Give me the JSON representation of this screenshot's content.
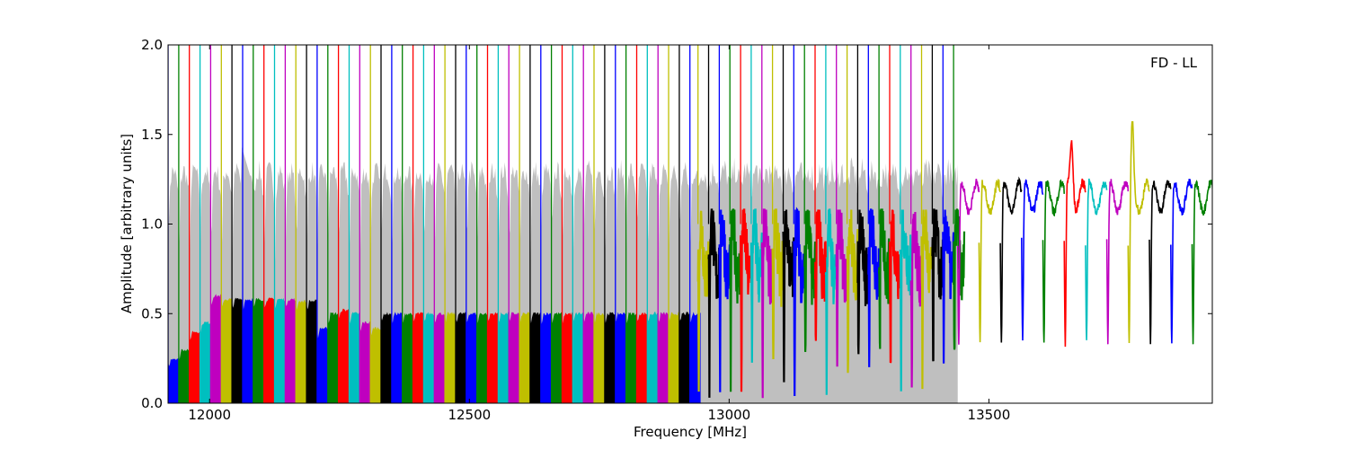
{
  "chart_data": {
    "type": "line",
    "title": "",
    "annotation": "FD - LL",
    "xlabel": "Frequency [MHz]",
    "ylabel": "Amplitude [arbitrary units]",
    "xlim": [
      11920,
      13930
    ],
    "ylim": [
      0.0,
      2.0
    ],
    "x_ticks": [
      12000,
      12500,
      13000,
      13500
    ],
    "x_tick_labels": [
      "12000",
      "12500",
      "13000",
      "13500"
    ],
    "y_ticks": [
      0.0,
      0.5,
      1.0,
      1.5,
      2.0
    ],
    "y_tick_labels": [
      "0.0",
      "0.5",
      "1.0",
      "1.5",
      "2.0"
    ],
    "grid": false,
    "legend": "none",
    "background_series_color": "#bfbfbf",
    "color_cycle": [
      "#0000ff",
      "#008000",
      "#ff0000",
      "#00bfbf",
      "#bf00bf",
      "#bfbf00",
      "#000000"
    ],
    "dense_channels": {
      "x_start": 11920,
      "channel_width": 20.5,
      "x_end": 12940,
      "baseline_levels": [
        0.25,
        0.3,
        0.4,
        0.45,
        0.6,
        0.58,
        0.58,
        0.58,
        0.58,
        0.58,
        0.58,
        0.58,
        0.57,
        0.57,
        0.42,
        0.5,
        0.52,
        0.5,
        0.45,
        0.42,
        0.5,
        0.5,
        0.5,
        0.5,
        0.5,
        0.5,
        0.5,
        0.5,
        0.5,
        0.5,
        0.5,
        0.5,
        0.5,
        0.5,
        0.5,
        0.5,
        0.5,
        0.5,
        0.5,
        0.5,
        0.5,
        0.5,
        0.5,
        0.5,
        0.5,
        0.5,
        0.5,
        0.5,
        0.5,
        0.5
      ],
      "background_envelope_mean": 1.15,
      "background_envelope_peak": 1.5
    },
    "medium_channels": {
      "x_start": 12940,
      "channel_width": 20.5,
      "x_end": 13440,
      "mean_level": 0.85,
      "min_level": 0.02,
      "max_level": 1.08
    },
    "sparse_channels": {
      "x_start": 13440,
      "channel_width": 41,
      "x_end": 13930,
      "mean_level": 1.15,
      "min_level": 0.27,
      "max_level": 1.57
    }
  }
}
